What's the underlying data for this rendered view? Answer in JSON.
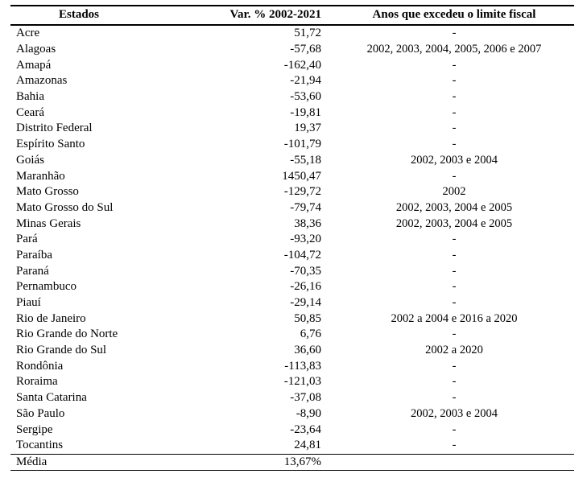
{
  "colors": {
    "background": "#ffffff",
    "text": "#000000",
    "rule": "#000000"
  },
  "table": {
    "headers": [
      "Estados",
      "Var. % 2002-2021",
      "Anos que excedeu o limite fiscal"
    ],
    "rows": [
      {
        "estado": "Acre",
        "var": "51,72",
        "anos": "-"
      },
      {
        "estado": "Alagoas",
        "var": "-57,68",
        "anos": "2002, 2003, 2004, 2005, 2006 e 2007"
      },
      {
        "estado": "Amapá",
        "var": "-162,40",
        "anos": "-"
      },
      {
        "estado": "Amazonas",
        "var": "-21,94",
        "anos": "-"
      },
      {
        "estado": "Bahia",
        "var": "-53,60",
        "anos": "-"
      },
      {
        "estado": "Ceará",
        "var": "-19,81",
        "anos": "-"
      },
      {
        "estado": "Distrito Federal",
        "var": "19,37",
        "anos": "-"
      },
      {
        "estado": "Espírito Santo",
        "var": "-101,79",
        "anos": "-"
      },
      {
        "estado": "Goiás",
        "var": "-55,18",
        "anos": "2002, 2003 e 2004"
      },
      {
        "estado": "Maranhão",
        "var": "1450,47",
        "anos": "-"
      },
      {
        "estado": "Mato Grosso",
        "var": "-129,72",
        "anos": "2002"
      },
      {
        "estado": "Mato Grosso do Sul",
        "var": "-79,74",
        "anos": "2002, 2003, 2004 e 2005"
      },
      {
        "estado": "Minas Gerais",
        "var": "38,36",
        "anos": "2002, 2003, 2004 e 2005"
      },
      {
        "estado": "Pará",
        "var": "-93,20",
        "anos": "-"
      },
      {
        "estado": "Paraíba",
        "var": "-104,72",
        "anos": "-"
      },
      {
        "estado": "Paraná",
        "var": "-70,35",
        "anos": "-"
      },
      {
        "estado": "Pernambuco",
        "var": "-26,16",
        "anos": "-"
      },
      {
        "estado": "Piauí",
        "var": "-29,14",
        "anos": "-"
      },
      {
        "estado": "Rio de Janeiro",
        "var": "50,85",
        "anos": "2002 a 2004 e 2016 a 2020"
      },
      {
        "estado": "Rio Grande do Norte",
        "var": "6,76",
        "anos": "-"
      },
      {
        "estado": "Rio Grande do Sul",
        "var": "36,60",
        "anos": "2002 a 2020"
      },
      {
        "estado": "Rondônia",
        "var": "-113,83",
        "anos": "-"
      },
      {
        "estado": "Roraima",
        "var": "-121,03",
        "anos": "-"
      },
      {
        "estado": "Santa Catarina",
        "var": "-37,08",
        "anos": "-"
      },
      {
        "estado": "São Paulo",
        "var": "-8,90",
        "anos": "2002, 2003 e 2004"
      },
      {
        "estado": "Sergipe",
        "var": "-23,64",
        "anos": "-"
      },
      {
        "estado": "Tocantins",
        "var": "24,81",
        "anos": "-"
      }
    ],
    "footer": {
      "label": "Média",
      "value": "13,67%",
      "anos": ""
    }
  }
}
